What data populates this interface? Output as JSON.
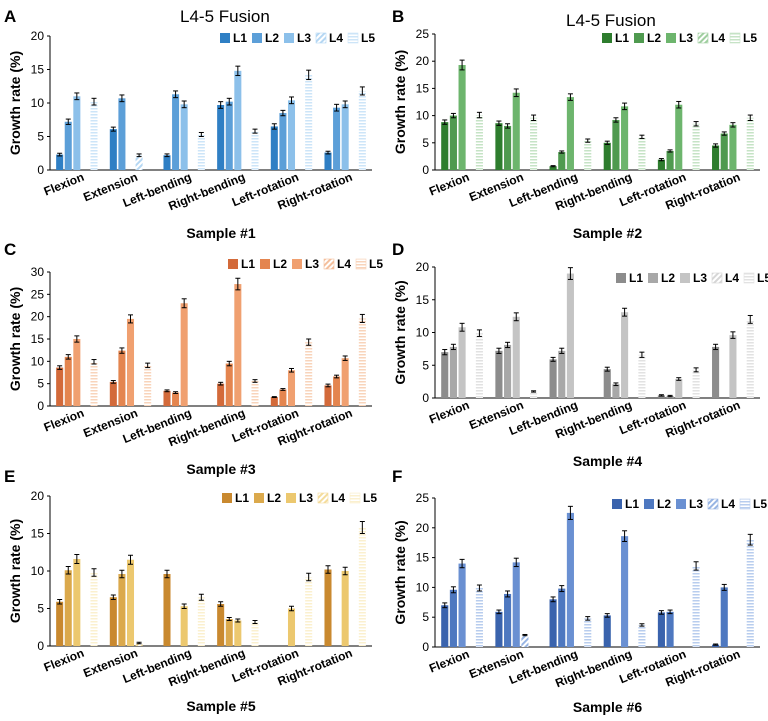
{
  "figure": {
    "title_left": "L4-5 Fusion",
    "title_right": "L4-5 Fusion"
  },
  "chart_data": [
    {
      "type": "bar",
      "panel": "A",
      "xlabel": "Sample #1",
      "ylabel": "Growth rate (%)",
      "ylim": [
        0,
        20
      ],
      "yticks": [
        0,
        5,
        10,
        15,
        20
      ],
      "categories": [
        "Flexion",
        "Extension",
        "Left-bending",
        "Right-bending",
        "Left-rotation",
        "Right-rotation"
      ],
      "legend": [
        "L1",
        "L2",
        "L3",
        "L4",
        "L5"
      ],
      "colors": [
        "#2f7fc4",
        "#5c9fd8",
        "#8cc0ea",
        "#b5d7f3",
        "#cde5f8"
      ],
      "series": [
        {
          "name": "L1",
          "values": [
            2.3,
            6.1,
            2.2,
            9.7,
            6.5,
            2.6
          ],
          "errors": [
            0.2,
            0.3,
            0.2,
            0.5,
            0.4,
            0.2
          ]
        },
        {
          "name": "L2",
          "values": [
            7.2,
            10.7,
            11.3,
            10.2,
            8.5,
            9.3
          ],
          "errors": [
            0.4,
            0.5,
            0.5,
            0.5,
            0.4,
            0.5
          ]
        },
        {
          "name": "L3",
          "values": [
            11.0,
            0,
            9.8,
            14.8,
            10.4,
            9.8
          ],
          "errors": [
            0.5,
            0,
            0.5,
            0.7,
            0.5,
            0.5
          ]
        },
        {
          "name": "L4",
          "values": [
            0,
            2.2,
            0,
            0,
            0,
            0
          ],
          "errors": [
            0,
            0.2,
            0,
            0,
            0,
            0
          ]
        },
        {
          "name": "L5",
          "values": [
            10.2,
            0,
            5.3,
            5.8,
            14.2,
            11.8
          ],
          "errors": [
            0.5,
            0,
            0.3,
            0.3,
            0.7,
            0.6
          ]
        }
      ]
    },
    {
      "type": "bar",
      "panel": "B",
      "xlabel": "Sample #2",
      "ylabel": "Growth rate (%)",
      "ylim": [
        0,
        25
      ],
      "yticks": [
        0,
        5,
        10,
        15,
        20,
        25
      ],
      "categories": [
        "Flexion",
        "Extension",
        "Left-bending",
        "Right-bending",
        "Left-rotation",
        "Right-rotation"
      ],
      "legend": [
        "L1",
        "L2",
        "L3",
        "L4",
        "L5"
      ],
      "colors": [
        "#2e7d2e",
        "#4f9a4f",
        "#6db56d",
        "#9fce9f",
        "#c6e3c6"
      ],
      "series": [
        {
          "name": "L1",
          "values": [
            8.8,
            8.6,
            0.7,
            5.0,
            1.9,
            4.5
          ],
          "errors": [
            0.4,
            0.4,
            0.1,
            0.3,
            0.2,
            0.3
          ]
        },
        {
          "name": "L2",
          "values": [
            10.0,
            8.1,
            3.3,
            9.2,
            3.5,
            6.7
          ],
          "errors": [
            0.4,
            0.4,
            0.2,
            0.4,
            0.2,
            0.3
          ]
        },
        {
          "name": "L3",
          "values": [
            19.3,
            14.2,
            13.4,
            11.7,
            12.0,
            8.3
          ],
          "errors": [
            0.9,
            0.7,
            0.6,
            0.6,
            0.6,
            0.4
          ]
        },
        {
          "name": "L4",
          "values": [
            0,
            0,
            0,
            0,
            0,
            0
          ],
          "errors": [
            0,
            0,
            0,
            0,
            0,
            0
          ]
        },
        {
          "name": "L5",
          "values": [
            10.1,
            9.6,
            5.4,
            6.1,
            8.5,
            9.6
          ],
          "errors": [
            0.5,
            0.5,
            0.3,
            0.3,
            0.4,
            0.5
          ]
        }
      ]
    },
    {
      "type": "bar",
      "panel": "C",
      "xlabel": "Sample #3",
      "ylabel": "Growth rate (%)",
      "ylim": [
        0,
        30
      ],
      "yticks": [
        0,
        5,
        10,
        15,
        20,
        25,
        30
      ],
      "categories": [
        "Flexion",
        "Extension",
        "Left-bending",
        "Right-bending",
        "Left-rotation",
        "Right-rotation"
      ],
      "legend": [
        "L1",
        "L2",
        "L3",
        "L4",
        "L5"
      ],
      "colors": [
        "#d36a3a",
        "#e4854f",
        "#f0a070",
        "#f4bf9c",
        "#f8d4bb"
      ],
      "series": [
        {
          "name": "L1",
          "values": [
            8.6,
            5.4,
            3.4,
            5.0,
            2.0,
            4.6
          ],
          "errors": [
            0.4,
            0.3,
            0.2,
            0.3,
            0.1,
            0.3
          ]
        },
        {
          "name": "L2",
          "values": [
            11.0,
            12.4,
            3.0,
            9.5,
            3.7,
            6.6
          ],
          "errors": [
            0.5,
            0.6,
            0.2,
            0.5,
            0.2,
            0.3
          ]
        },
        {
          "name": "L3",
          "values": [
            15.0,
            19.5,
            23.0,
            27.3,
            8.0,
            10.7
          ],
          "errors": [
            0.7,
            0.9,
            1.0,
            1.3,
            0.4,
            0.5
          ]
        },
        {
          "name": "L4",
          "values": [
            0,
            0,
            0,
            0,
            0,
            0
          ],
          "errors": [
            0,
            0,
            0,
            0,
            0,
            0
          ]
        },
        {
          "name": "L5",
          "values": [
            9.9,
            9.1,
            0,
            5.6,
            14.3,
            19.6
          ],
          "errors": [
            0.5,
            0.5,
            0,
            0.3,
            0.7,
            0.9
          ]
        }
      ]
    },
    {
      "type": "bar",
      "panel": "D",
      "xlabel": "Sample #4",
      "ylabel": "Growth rate (%)",
      "ylim": [
        0,
        20
      ],
      "yticks": [
        0,
        5,
        10,
        15,
        20
      ],
      "categories": [
        "Flexion",
        "Extension",
        "Left-bending",
        "Right-bending",
        "Left-rotation",
        "Right-rotation"
      ],
      "legend": [
        "L1",
        "L2",
        "L3",
        "L4",
        "L5"
      ],
      "colors": [
        "#8c8c8c",
        "#a8a8a8",
        "#c4c4c4",
        "#d6d6d6",
        "#e2e2e2"
      ],
      "series": [
        {
          "name": "L1",
          "values": [
            7.0,
            7.2,
            5.9,
            4.4,
            0.4,
            7.8
          ],
          "errors": [
            0.4,
            0.4,
            0.3,
            0.3,
            0.1,
            0.4
          ]
        },
        {
          "name": "L2",
          "values": [
            7.8,
            8.1,
            7.2,
            2.1,
            0.3,
            0
          ],
          "errors": [
            0.4,
            0.4,
            0.4,
            0.2,
            0.1,
            0
          ]
        },
        {
          "name": "L3",
          "values": [
            10.8,
            12.4,
            19.0,
            13.1,
            2.9,
            9.6
          ],
          "errors": [
            0.6,
            0.6,
            0.9,
            0.6,
            0.2,
            0.5
          ]
        },
        {
          "name": "L4",
          "values": [
            0,
            0,
            0,
            0,
            0,
            0
          ],
          "errors": [
            0,
            0,
            0,
            0,
            0,
            0
          ]
        },
        {
          "name": "L5",
          "values": [
            9.9,
            1.0,
            0,
            6.6,
            4.3,
            12.0
          ],
          "errors": [
            0.5,
            0.1,
            0,
            0.4,
            0.3,
            0.6
          ]
        }
      ]
    },
    {
      "type": "bar",
      "panel": "E",
      "xlabel": "Sample #5",
      "ylabel": "Growth rate (%)",
      "ylim": [
        0,
        20
      ],
      "yticks": [
        0,
        5,
        10,
        15,
        20
      ],
      "categories": [
        "Flexion",
        "Extension",
        "Left-bending",
        "Right-bending",
        "Left-rotation",
        "Right-rotation"
      ],
      "legend": [
        "L1",
        "L2",
        "L3",
        "L4",
        "L5"
      ],
      "colors": [
        "#c9892f",
        "#dba94c",
        "#ecc86f",
        "#f4dc9c",
        "#fbf0cf"
      ],
      "series": [
        {
          "name": "L1",
          "values": [
            5.9,
            6.5,
            9.6,
            5.6,
            0,
            10.2
          ],
          "errors": [
            0.3,
            0.3,
            0.5,
            0.3,
            0,
            0.5
          ]
        },
        {
          "name": "L2",
          "values": [
            10.1,
            9.6,
            0,
            3.6,
            0,
            0
          ],
          "errors": [
            0.5,
            0.5,
            0,
            0.2,
            0,
            0
          ]
        },
        {
          "name": "L3",
          "values": [
            11.6,
            11.5,
            5.3,
            3.4,
            5.0,
            10.0
          ],
          "errors": [
            0.6,
            0.6,
            0.3,
            0.2,
            0.3,
            0.5
          ]
        },
        {
          "name": "L4",
          "values": [
            0,
            0.4,
            0,
            0,
            0,
            0
          ],
          "errors": [
            0,
            0.1,
            0,
            0,
            0,
            0
          ]
        },
        {
          "name": "L5",
          "values": [
            9.8,
            0,
            6.5,
            3.2,
            9.2,
            15.8
          ],
          "errors": [
            0.5,
            0,
            0.4,
            0.2,
            0.5,
            0.8
          ]
        }
      ]
    },
    {
      "type": "bar",
      "panel": "F",
      "xlabel": "Sample #6",
      "ylabel": "Growth rate (%)",
      "ylim": [
        0,
        25
      ],
      "yticks": [
        0,
        5,
        10,
        15,
        20,
        25
      ],
      "categories": [
        "Flexion",
        "Extension",
        "Left-bending",
        "Right-bending",
        "Left-rotation",
        "Right-rotation"
      ],
      "legend": [
        "L1",
        "L2",
        "L3",
        "L4",
        "L5"
      ],
      "colors": [
        "#3a63ad",
        "#4e78c0",
        "#6a90d2",
        "#97b4e3",
        "#b8cdee"
      ],
      "series": [
        {
          "name": "L1",
          "values": [
            7.0,
            5.9,
            8.0,
            5.3,
            5.8,
            0.4
          ],
          "errors": [
            0.4,
            0.3,
            0.4,
            0.3,
            0.3,
            0.1
          ]
        },
        {
          "name": "L2",
          "values": [
            9.6,
            8.9,
            9.8,
            0,
            5.9,
            10.0
          ],
          "errors": [
            0.5,
            0.5,
            0.5,
            0,
            0.3,
            0.5
          ]
        },
        {
          "name": "L3",
          "values": [
            14.0,
            14.2,
            22.5,
            18.6,
            0,
            0
          ],
          "errors": [
            0.7,
            0.7,
            1.1,
            0.9,
            0,
            0
          ]
        },
        {
          "name": "L4",
          "values": [
            0,
            2.0,
            0,
            0,
            0,
            0
          ],
          "errors": [
            0,
            0.1,
            0,
            0,
            0,
            0
          ]
        },
        {
          "name": "L5",
          "values": [
            9.9,
            0,
            4.8,
            3.7,
            13.6,
            18.0
          ],
          "errors": [
            0.5,
            0,
            0.3,
            0.2,
            0.7,
            0.9
          ]
        }
      ]
    }
  ]
}
